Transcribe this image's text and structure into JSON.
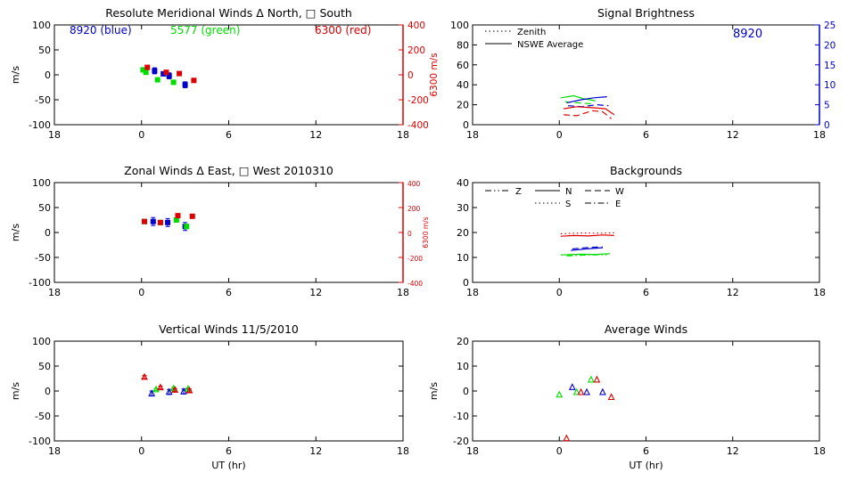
{
  "colors": {
    "blue": "#0000cc",
    "green": "#00dd00",
    "red": "#dd0000",
    "axis": "#000000"
  },
  "x_ticks": [
    "18",
    "0",
    "6",
    "12",
    "18"
  ],
  "x_label": "UT (hr)",
  "chart_data": [
    {
      "id": "meridional",
      "type": "scatter",
      "title": "Resolute Meridional Winds Δ North, □ South",
      "ylabel": "m/s",
      "ylim": [
        -100,
        100
      ],
      "yticks": [
        "100",
        "50",
        "0",
        "-50",
        "-100"
      ],
      "xlim": [
        -6,
        18
      ],
      "right_axis": {
        "label": "6300 m/s",
        "ylim": [
          -400,
          400
        ],
        "ticks": [
          "400",
          "200",
          "0",
          "-200",
          "-400"
        ],
        "color": "red"
      },
      "legend": [
        {
          "text": "8920 (blue)",
          "color": "blue"
        },
        {
          "text": "5577 (green)",
          "color": "green"
        },
        {
          "text": "6300 (red)",
          "color": "red"
        }
      ],
      "series": [
        {
          "name": "8920",
          "color": "blue",
          "marker": "square",
          "points": [
            [
              0.9,
              8
            ],
            [
              1.5,
              2
            ],
            [
              1.9,
              -2
            ],
            [
              3.0,
              -20
            ]
          ],
          "err": [
            6,
            4,
            6,
            6
          ]
        },
        {
          "name": "5577",
          "color": "green",
          "marker": "square",
          "points": [
            [
              0.1,
              10
            ],
            [
              0.3,
              5
            ],
            [
              1.1,
              -10
            ],
            [
              2.2,
              -15
            ]
          ],
          "err": [
            3,
            3,
            3,
            3
          ]
        },
        {
          "name": "6300",
          "color": "red",
          "marker": "square",
          "points": [
            [
              0.4,
              60
            ],
            [
              1.7,
              20
            ],
            [
              2.6,
              10
            ],
            [
              3.6,
              -45
            ]
          ],
          "err": [
            8,
            8,
            8,
            8
          ]
        }
      ]
    },
    {
      "id": "brightness",
      "type": "line",
      "title": "Signal Brightness",
      "ylabel": "",
      "ylim": [
        0,
        100
      ],
      "yticks": [
        "100",
        "80",
        "60",
        "40",
        "20",
        "0"
      ],
      "xlim": [
        -6,
        18
      ],
      "right_axis": {
        "label": "",
        "ylim": [
          0,
          25
        ],
        "ticks": [
          "25",
          "20",
          "15",
          "10",
          "5",
          "0"
        ],
        "color": "blue"
      },
      "annotation": "8920",
      "legend": [
        {
          "text": "Zenith",
          "style": "dotted"
        },
        {
          "text": "NSWE Average",
          "style": "solid"
        }
      ],
      "series": [
        {
          "name": "green NSWE",
          "color": "green",
          "style": "solid",
          "points": [
            [
              0.1,
              27
            ],
            [
              1.0,
              29
            ],
            [
              1.7,
              26
            ],
            [
              2.5,
              24
            ]
          ]
        },
        {
          "name": "green dashed",
          "color": "green",
          "style": "dashed",
          "points": [
            [
              0.4,
              23
            ],
            [
              1.3,
              22
            ],
            [
              2.2,
              21
            ]
          ]
        },
        {
          "name": "blue NSWE",
          "color": "blue",
          "style": "solid",
          "points": [
            [
              0.5,
              22
            ],
            [
              1.5,
              25
            ],
            [
              2.4,
              27
            ],
            [
              3.3,
              28
            ]
          ]
        },
        {
          "name": "blue dashed",
          "color": "blue",
          "style": "dashed",
          "points": [
            [
              0.6,
              19
            ],
            [
              1.6,
              18
            ],
            [
              2.6,
              20
            ],
            [
              3.4,
              19
            ]
          ]
        },
        {
          "name": "red NSWE",
          "color": "red",
          "style": "solid",
          "points": [
            [
              0.3,
              16
            ],
            [
              1.2,
              18
            ],
            [
              2.4,
              17
            ],
            [
              3.2,
              16
            ],
            [
              3.8,
              10
            ]
          ]
        },
        {
          "name": "red dashed",
          "color": "red",
          "style": "dashed",
          "points": [
            [
              0.3,
              10
            ],
            [
              1.2,
              9
            ],
            [
              2.3,
              14
            ],
            [
              3.0,
              13
            ],
            [
              3.6,
              6
            ]
          ]
        }
      ]
    },
    {
      "id": "zonal",
      "type": "scatter",
      "title": "Zonal Winds Δ East, □ West 2010310",
      "ylabel": "m/s",
      "ylim": [
        -100,
        100
      ],
      "yticks": [
        "100",
        "50",
        "0",
        "-50",
        "-100"
      ],
      "xlim": [
        -6,
        18
      ],
      "right_axis": {
        "label": "6300 m/s",
        "ylim": [
          -400,
          400
        ],
        "ticks": [
          "400",
          "200",
          "0",
          "-200",
          "-400"
        ],
        "color": "red"
      },
      "series": [
        {
          "name": "8920",
          "color": "blue",
          "marker": "square",
          "points": [
            [
              0.8,
              22
            ],
            [
              1.8,
              20
            ],
            [
              3.0,
              12
            ]
          ],
          "err": [
            8,
            8,
            8
          ]
        },
        {
          "name": "5577",
          "color": "green",
          "marker": "square",
          "points": [
            [
              0.2,
              22
            ],
            [
              1.3,
              20
            ],
            [
              2.4,
              25
            ],
            [
              3.1,
              12
            ]
          ],
          "err": [
            3,
            3,
            3,
            3
          ]
        },
        {
          "name": "6300",
          "color": "red",
          "marker": "square",
          "points": [
            [
              0.2,
              88
            ],
            [
              1.3,
              80
            ],
            [
              2.5,
              135
            ],
            [
              3.5,
              130
            ]
          ],
          "err": [
            10,
            10,
            10,
            10
          ]
        }
      ]
    },
    {
      "id": "backgrounds",
      "type": "line",
      "title": "Backgrounds",
      "ylabel": "",
      "ylim": [
        0,
        40
      ],
      "yticks": [
        "40",
        "30",
        "20",
        "10",
        "0"
      ],
      "xlim": [
        -6,
        18
      ],
      "legend": [
        {
          "text": "Z",
          "style": "dashdotdot"
        },
        {
          "text": "N",
          "style": "solid"
        },
        {
          "text": "W",
          "style": "dashed"
        },
        {
          "text": "S",
          "style": "dotted"
        },
        {
          "text": "E",
          "style": "dashdot"
        }
      ],
      "series": [
        {
          "name": "red",
          "color": "red",
          "style": "solid",
          "points": [
            [
              0.1,
              18.5
            ],
            [
              1.0,
              18.8
            ],
            [
              2.0,
              18.6
            ],
            [
              3.0,
              19.0
            ],
            [
              3.8,
              18.8
            ]
          ]
        },
        {
          "name": "red dotted",
          "color": "red",
          "style": "dotted",
          "points": [
            [
              0.1,
              19.5
            ],
            [
              1.5,
              19.8
            ],
            [
              3.0,
              19.7
            ],
            [
              3.8,
              19.9
            ]
          ]
        },
        {
          "name": "blue",
          "color": "blue",
          "style": "solid",
          "points": [
            [
              0.8,
              12.8
            ],
            [
              1.8,
              13.4
            ],
            [
              3.0,
              13.9
            ]
          ]
        },
        {
          "name": "blue dashed",
          "color": "blue",
          "style": "dashed",
          "points": [
            [
              0.9,
              13.4
            ],
            [
              2.0,
              14.0
            ],
            [
              3.0,
              14.2
            ]
          ]
        },
        {
          "name": "green",
          "color": "green",
          "style": "solid",
          "points": [
            [
              0.1,
              11.0
            ],
            [
              1.5,
              11.3
            ],
            [
              2.5,
              11.2
            ],
            [
              3.5,
              11.5
            ]
          ]
        },
        {
          "name": "green dashdot",
          "color": "green",
          "style": "dashdot",
          "points": [
            [
              0.5,
              10.6
            ],
            [
              2.0,
              11.0
            ],
            [
              3.3,
              11.1
            ]
          ]
        }
      ]
    },
    {
      "id": "vertical",
      "type": "scatter",
      "title": "Vertical Winds 11/5/2010",
      "ylabel": "m/s",
      "ylim": [
        -100,
        100
      ],
      "yticks": [
        "100",
        "50",
        "0",
        "-50",
        "-100"
      ],
      "xlim": [
        -6,
        18
      ],
      "series": [
        {
          "name": "8920",
          "color": "blue",
          "marker": "triangle",
          "points": [
            [
              0.7,
              -5
            ],
            [
              1.9,
              -2
            ],
            [
              2.9,
              -1
            ]
          ],
          "err": [
            5,
            5,
            5
          ]
        },
        {
          "name": "5577",
          "color": "green",
          "marker": "triangle",
          "points": [
            [
              1.0,
              3
            ],
            [
              2.2,
              5
            ],
            [
              3.2,
              4
            ]
          ],
          "err": [
            2,
            2,
            2
          ]
        },
        {
          "name": "6300",
          "color": "red",
          "marker": "triangle",
          "points": [
            [
              0.2,
              28
            ],
            [
              1.3,
              7
            ],
            [
              2.3,
              2
            ],
            [
              3.3,
              1
            ]
          ],
          "err": [
            3,
            3,
            3,
            3
          ]
        }
      ]
    },
    {
      "id": "average",
      "type": "scatter",
      "title": "Average Winds",
      "ylabel": "m/s",
      "ylim": [
        -20,
        20
      ],
      "yticks": [
        "20",
        "10",
        "0",
        "-10",
        "-20"
      ],
      "xlim": [
        -6,
        18
      ],
      "series": [
        {
          "name": "8920",
          "color": "blue",
          "marker": "triangle",
          "points": [
            [
              0.9,
              1.5
            ],
            [
              1.9,
              -0.5
            ],
            [
              3.0,
              -0.5
            ]
          ]
        },
        {
          "name": "5577",
          "color": "green",
          "marker": "triangle",
          "points": [
            [
              0.0,
              -1.5
            ],
            [
              1.2,
              -0.5
            ],
            [
              2.2,
              4.5
            ]
          ]
        },
        {
          "name": "6300",
          "color": "red",
          "marker": "triangle",
          "points": [
            [
              0.5,
              -19
            ],
            [
              1.5,
              -0.5
            ],
            [
              2.6,
              4.5
            ],
            [
              3.6,
              -2.5
            ]
          ]
        }
      ]
    }
  ]
}
